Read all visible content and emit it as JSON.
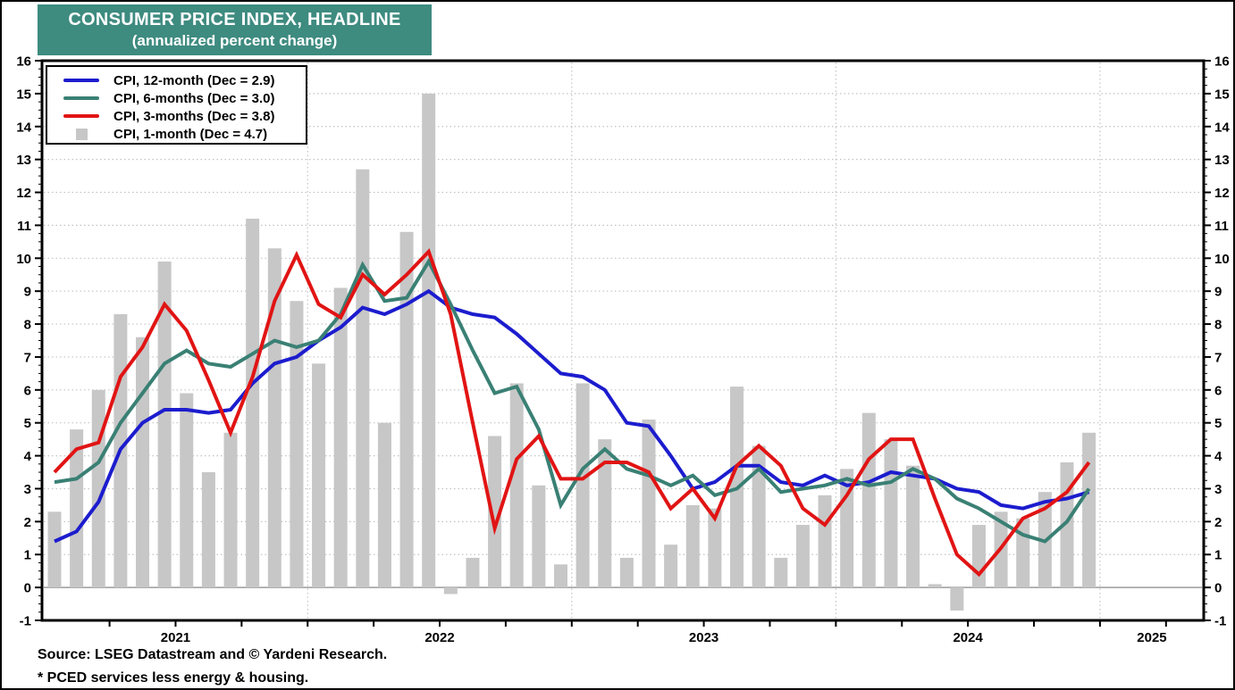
{
  "title": {
    "line1": "CONSUMER PRICE INDEX, HEADLINE",
    "line2": "(annualized percent change)"
  },
  "legend": {
    "items": [
      {
        "label": "CPI, 12-month (Dec = 2.9)",
        "swatch": "line",
        "color_key": "blue"
      },
      {
        "label": "CPI, 6-months (Dec = 3.0)",
        "swatch": "line",
        "color_key": "green"
      },
      {
        "label": "CPI, 3-months (Dec = 3.8)",
        "swatch": "line",
        "color_key": "red"
      },
      {
        "label": "CPI, 1-month (Dec = 4.7)",
        "swatch": "square",
        "color_key": "bar"
      }
    ]
  },
  "footer": {
    "source": "Source: LSEG Datastream and © Yardeni Research.",
    "note": "* PCED services less energy & housing."
  },
  "colors": {
    "header_bg": "#3E8B80",
    "title_text": "#FFFFFF",
    "blue": "#1C1CCE",
    "green": "#3A8074",
    "red": "#E11414",
    "bar": "#C7C7C7",
    "grid": "#C3C3C3",
    "zero_line": "#9B9B9B",
    "frame": "#000000"
  },
  "chart_data": {
    "type": "bar+line",
    "title": "Consumer Price Index, Headline (annualized percent change)",
    "ylim": [
      -1,
      16
    ],
    "y_ticks": [
      -1,
      0,
      1,
      2,
      3,
      4,
      5,
      6,
      7,
      8,
      9,
      10,
      11,
      12,
      13,
      14,
      15,
      16
    ],
    "y_ticks_both_sides": true,
    "grid": "dotted horizontal lines at each integer; dotted vertical lines at year boundaries; solid gray zero line",
    "x_year_labels": [
      "2021",
      "2022",
      "2023",
      "2024",
      "2025"
    ],
    "months": [
      "2021-01",
      "2021-02",
      "2021-03",
      "2021-04",
      "2021-05",
      "2021-06",
      "2021-07",
      "2021-08",
      "2021-09",
      "2021-10",
      "2021-11",
      "2021-12",
      "2022-01",
      "2022-02",
      "2022-03",
      "2022-04",
      "2022-05",
      "2022-06",
      "2022-07",
      "2022-08",
      "2022-09",
      "2022-10",
      "2022-11",
      "2022-12",
      "2023-01",
      "2023-02",
      "2023-03",
      "2023-04",
      "2023-05",
      "2023-06",
      "2023-07",
      "2023-08",
      "2023-09",
      "2023-10",
      "2023-11",
      "2023-12",
      "2024-01",
      "2024-02",
      "2024-03",
      "2024-04",
      "2024-05",
      "2024-06",
      "2024-07",
      "2024-08",
      "2024-09",
      "2024-10",
      "2024-11",
      "2024-12"
    ],
    "series": [
      {
        "name": "CPI, 1-month (Dec = 4.7)",
        "type": "bar",
        "color_key": "bar",
        "values": [
          2.3,
          4.8,
          6.0,
          8.3,
          7.6,
          9.9,
          5.9,
          3.5,
          4.7,
          11.2,
          10.3,
          8.7,
          6.8,
          9.1,
          12.7,
          5.0,
          10.8,
          15.0,
          -0.2,
          0.9,
          4.6,
          6.2,
          3.1,
          0.7,
          6.2,
          4.5,
          0.9,
          5.1,
          1.3,
          2.5,
          2.4,
          6.1,
          4.3,
          0.9,
          1.9,
          2.8,
          3.6,
          5.3,
          4.5,
          3.7,
          0.1,
          -0.7,
          1.9,
          2.3,
          2.1,
          2.9,
          3.8,
          4.7
        ]
      },
      {
        "name": "CPI, 12-month (Dec = 2.9)",
        "type": "line",
        "color_key": "blue",
        "values": [
          1.4,
          1.7,
          2.6,
          4.2,
          5.0,
          5.4,
          5.4,
          5.3,
          5.4,
          6.2,
          6.8,
          7.0,
          7.5,
          7.9,
          8.5,
          8.3,
          8.6,
          9.0,
          8.5,
          8.3,
          8.2,
          7.7,
          7.1,
          6.5,
          6.4,
          6.0,
          5.0,
          4.9,
          4.0,
          3.0,
          3.2,
          3.7,
          3.7,
          3.2,
          3.1,
          3.4,
          3.1,
          3.2,
          3.5,
          3.4,
          3.3,
          3.0,
          2.9,
          2.5,
          2.4,
          2.6,
          2.7,
          2.9
        ]
      },
      {
        "name": "CPI, 6-months (Dec = 3.0)",
        "type": "line",
        "color_key": "green",
        "values": [
          3.2,
          3.3,
          3.8,
          5.0,
          5.9,
          6.8,
          7.2,
          6.8,
          6.7,
          7.1,
          7.5,
          7.3,
          7.5,
          8.3,
          9.8,
          8.7,
          8.8,
          9.9,
          8.6,
          7.2,
          5.9,
          6.1,
          4.8,
          2.5,
          3.6,
          4.2,
          3.6,
          3.4,
          3.1,
          3.4,
          2.8,
          3.0,
          3.6,
          2.9,
          3.0,
          3.1,
          3.3,
          3.1,
          3.2,
          3.6,
          3.3,
          2.7,
          2.4,
          2.0,
          1.6,
          1.4,
          2.0,
          3.0
        ]
      },
      {
        "name": "CPI, 3-months (Dec = 3.8)",
        "type": "line",
        "color_key": "red",
        "values": [
          3.5,
          4.2,
          4.4,
          6.4,
          7.3,
          8.6,
          7.8,
          6.3,
          4.7,
          6.4,
          8.7,
          10.1,
          8.6,
          8.2,
          9.5,
          8.9,
          9.5,
          10.2,
          8.3,
          5.0,
          1.8,
          3.9,
          4.6,
          3.3,
          3.3,
          3.8,
          3.8,
          3.5,
          2.4,
          3.0,
          2.1,
          3.7,
          4.3,
          3.7,
          2.4,
          1.9,
          2.8,
          3.9,
          4.5,
          4.5,
          2.7,
          1.0,
          0.4,
          1.2,
          2.1,
          2.4,
          2.9,
          3.8
        ]
      }
    ],
    "legend_position": "top-left inside plot"
  }
}
